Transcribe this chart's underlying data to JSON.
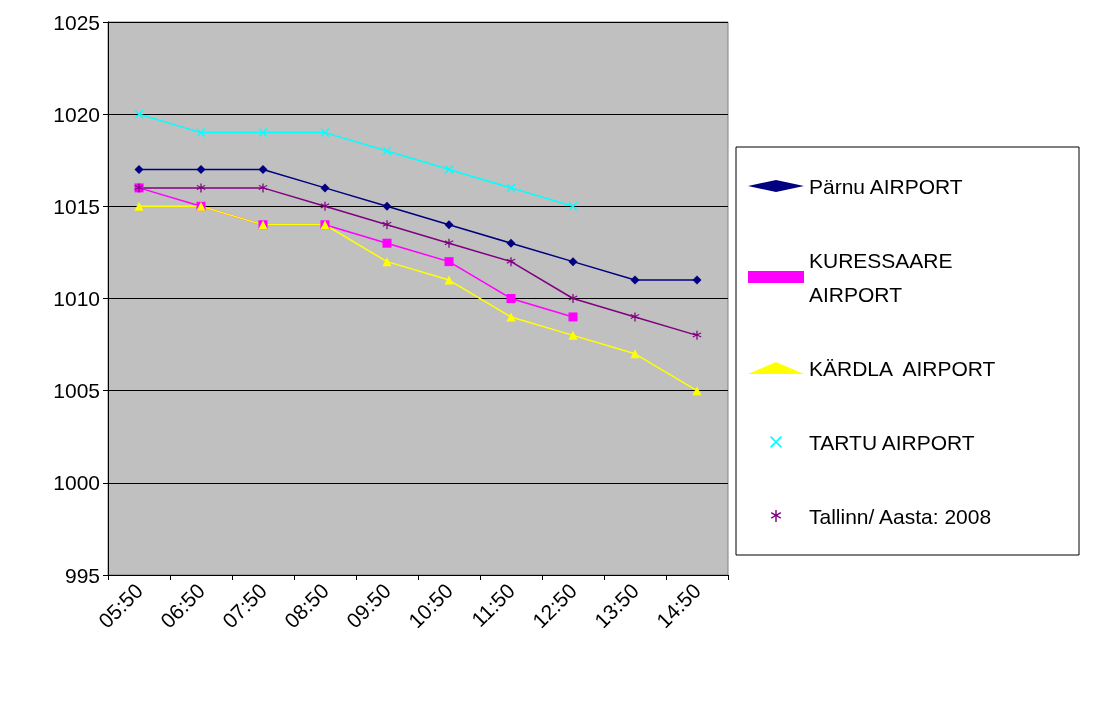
{
  "chart_data": {
    "type": "line",
    "categories": [
      "05:50",
      "06:50",
      "07:50",
      "08:50",
      "09:50",
      "10:50",
      "11:50",
      "12:50",
      "13:50",
      "14:50"
    ],
    "series": [
      {
        "name": "Pärnu AIRPORT",
        "color": "#000080",
        "marker": "diamond",
        "values": [
          1017,
          1017,
          1017,
          1016,
          1015,
          1014,
          1013,
          1012,
          1011,
          1011
        ]
      },
      {
        "name": "KURESSAARE AIRPORT",
        "color": "#ff00ff",
        "marker": "square",
        "values": [
          1016,
          1015,
          1014,
          1014,
          1013,
          1012,
          1010,
          1009,
          null,
          null
        ]
      },
      {
        "name": "KÄRDLA  AIRPORT",
        "color": "#ffff00",
        "marker": "triangle",
        "values": [
          1015,
          1015,
          1014,
          1014,
          1012,
          1011,
          1009,
          1008,
          1007,
          1005
        ]
      },
      {
        "name": "TARTU AIRPORT",
        "color": "#00ffff",
        "marker": "cross",
        "values": [
          1020,
          1019,
          1019,
          1019,
          1018,
          1017,
          1016,
          1015,
          null,
          null
        ]
      },
      {
        "name": "Tallinn/ Aasta: 2008",
        "color": "#800080",
        "marker": "star",
        "values": [
          1016,
          1016,
          1016,
          1015,
          1014,
          1013,
          1012,
          1010,
          1009,
          1008
        ]
      }
    ],
    "ylim": [
      995,
      1025
    ],
    "yticks": [
      995,
      1000,
      1005,
      1010,
      1015,
      1020,
      1025
    ],
    "grid": "y",
    "legend": "right",
    "line_style": "solid"
  }
}
